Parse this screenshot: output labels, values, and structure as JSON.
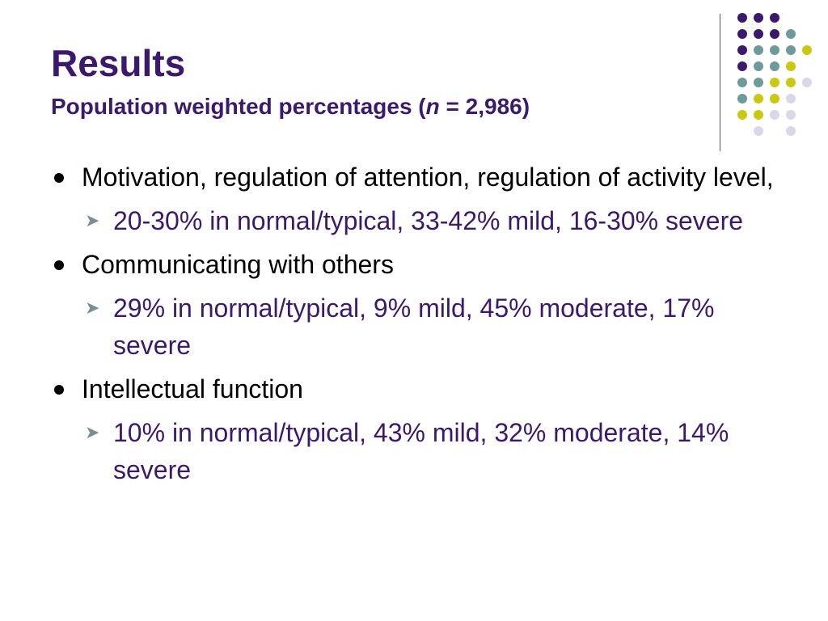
{
  "title": "Results",
  "subtitle": {
    "prefix": "Population weighted percentages (",
    "italic": "n",
    "suffix": " = 2,986)"
  },
  "bullets": [
    {
      "text": "Motivation, regulation of attention, regulation of activity level,",
      "sub": "20-30% in normal/typical, 33-42% mild, 16-30% severe"
    },
    {
      "text": "Communicating with others",
      "sub": "29% in normal/typical, 9% mild, 45% moderate, 17% severe"
    },
    {
      "text": "Intellectual function",
      "sub": "10% in normal/typical, 43% mild, 32% moderate, 14% severe"
    }
  ],
  "colors": {
    "title": "#3b1a6b",
    "sub_bullet_text": "#3b1a6b",
    "dot_purple": "#3b1a6b",
    "dot_teal": "#6e9a9a",
    "dot_yellow": "#c9c812",
    "dot_lavender": "#d8d8e8"
  }
}
